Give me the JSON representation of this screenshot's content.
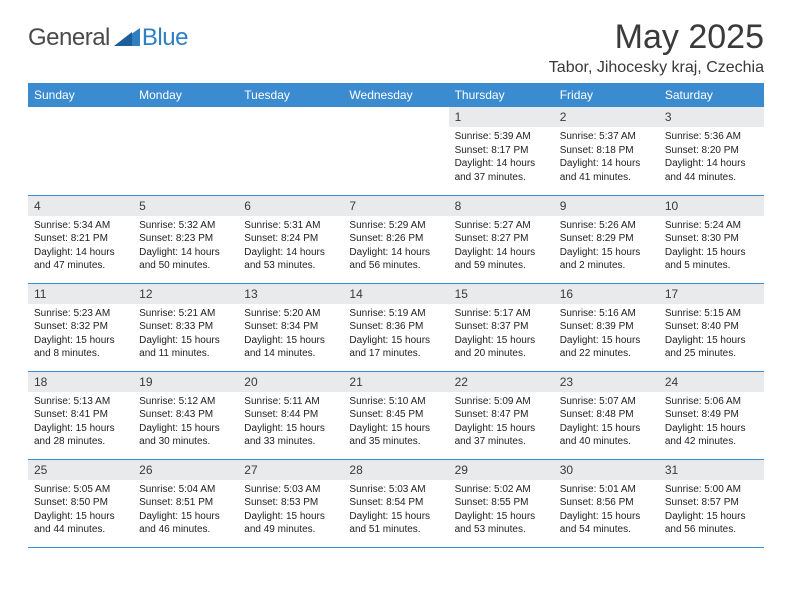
{
  "logo": {
    "text1": "General",
    "text2": "Blue",
    "color1": "#4a4a4a",
    "color2": "#2f7fc2"
  },
  "title": "May 2025",
  "subtitle": "Tabor, Jihocesky kraj, Czechia",
  "header_bg": "#3b8bd0",
  "header_fg": "#ffffff",
  "date_bg": "#e9eaeb",
  "rule_color": "#3b8bd0",
  "day_names": [
    "Sunday",
    "Monday",
    "Tuesday",
    "Wednesday",
    "Thursday",
    "Friday",
    "Saturday"
  ],
  "weeks": [
    [
      null,
      null,
      null,
      null,
      {
        "n": "1",
        "sr": "5:39 AM",
        "ss": "8:17 PM",
        "dl": "14 hours and 37 minutes."
      },
      {
        "n": "2",
        "sr": "5:37 AM",
        "ss": "8:18 PM",
        "dl": "14 hours and 41 minutes."
      },
      {
        "n": "3",
        "sr": "5:36 AM",
        "ss": "8:20 PM",
        "dl": "14 hours and 44 minutes."
      }
    ],
    [
      {
        "n": "4",
        "sr": "5:34 AM",
        "ss": "8:21 PM",
        "dl": "14 hours and 47 minutes."
      },
      {
        "n": "5",
        "sr": "5:32 AM",
        "ss": "8:23 PM",
        "dl": "14 hours and 50 minutes."
      },
      {
        "n": "6",
        "sr": "5:31 AM",
        "ss": "8:24 PM",
        "dl": "14 hours and 53 minutes."
      },
      {
        "n": "7",
        "sr": "5:29 AM",
        "ss": "8:26 PM",
        "dl": "14 hours and 56 minutes."
      },
      {
        "n": "8",
        "sr": "5:27 AM",
        "ss": "8:27 PM",
        "dl": "14 hours and 59 minutes."
      },
      {
        "n": "9",
        "sr": "5:26 AM",
        "ss": "8:29 PM",
        "dl": "15 hours and 2 minutes."
      },
      {
        "n": "10",
        "sr": "5:24 AM",
        "ss": "8:30 PM",
        "dl": "15 hours and 5 minutes."
      }
    ],
    [
      {
        "n": "11",
        "sr": "5:23 AM",
        "ss": "8:32 PM",
        "dl": "15 hours and 8 minutes."
      },
      {
        "n": "12",
        "sr": "5:21 AM",
        "ss": "8:33 PM",
        "dl": "15 hours and 11 minutes."
      },
      {
        "n": "13",
        "sr": "5:20 AM",
        "ss": "8:34 PM",
        "dl": "15 hours and 14 minutes."
      },
      {
        "n": "14",
        "sr": "5:19 AM",
        "ss": "8:36 PM",
        "dl": "15 hours and 17 minutes."
      },
      {
        "n": "15",
        "sr": "5:17 AM",
        "ss": "8:37 PM",
        "dl": "15 hours and 20 minutes."
      },
      {
        "n": "16",
        "sr": "5:16 AM",
        "ss": "8:39 PM",
        "dl": "15 hours and 22 minutes."
      },
      {
        "n": "17",
        "sr": "5:15 AM",
        "ss": "8:40 PM",
        "dl": "15 hours and 25 minutes."
      }
    ],
    [
      {
        "n": "18",
        "sr": "5:13 AM",
        "ss": "8:41 PM",
        "dl": "15 hours and 28 minutes."
      },
      {
        "n": "19",
        "sr": "5:12 AM",
        "ss": "8:43 PM",
        "dl": "15 hours and 30 minutes."
      },
      {
        "n": "20",
        "sr": "5:11 AM",
        "ss": "8:44 PM",
        "dl": "15 hours and 33 minutes."
      },
      {
        "n": "21",
        "sr": "5:10 AM",
        "ss": "8:45 PM",
        "dl": "15 hours and 35 minutes."
      },
      {
        "n": "22",
        "sr": "5:09 AM",
        "ss": "8:47 PM",
        "dl": "15 hours and 37 minutes."
      },
      {
        "n": "23",
        "sr": "5:07 AM",
        "ss": "8:48 PM",
        "dl": "15 hours and 40 minutes."
      },
      {
        "n": "24",
        "sr": "5:06 AM",
        "ss": "8:49 PM",
        "dl": "15 hours and 42 minutes."
      }
    ],
    [
      {
        "n": "25",
        "sr": "5:05 AM",
        "ss": "8:50 PM",
        "dl": "15 hours and 44 minutes."
      },
      {
        "n": "26",
        "sr": "5:04 AM",
        "ss": "8:51 PM",
        "dl": "15 hours and 46 minutes."
      },
      {
        "n": "27",
        "sr": "5:03 AM",
        "ss": "8:53 PM",
        "dl": "15 hours and 49 minutes."
      },
      {
        "n": "28",
        "sr": "5:03 AM",
        "ss": "8:54 PM",
        "dl": "15 hours and 51 minutes."
      },
      {
        "n": "29",
        "sr": "5:02 AM",
        "ss": "8:55 PM",
        "dl": "15 hours and 53 minutes."
      },
      {
        "n": "30",
        "sr": "5:01 AM",
        "ss": "8:56 PM",
        "dl": "15 hours and 54 minutes."
      },
      {
        "n": "31",
        "sr": "5:00 AM",
        "ss": "8:57 PM",
        "dl": "15 hours and 56 minutes."
      }
    ]
  ],
  "labels": {
    "sunrise": "Sunrise:",
    "sunset": "Sunset:",
    "daylight": "Daylight:"
  }
}
